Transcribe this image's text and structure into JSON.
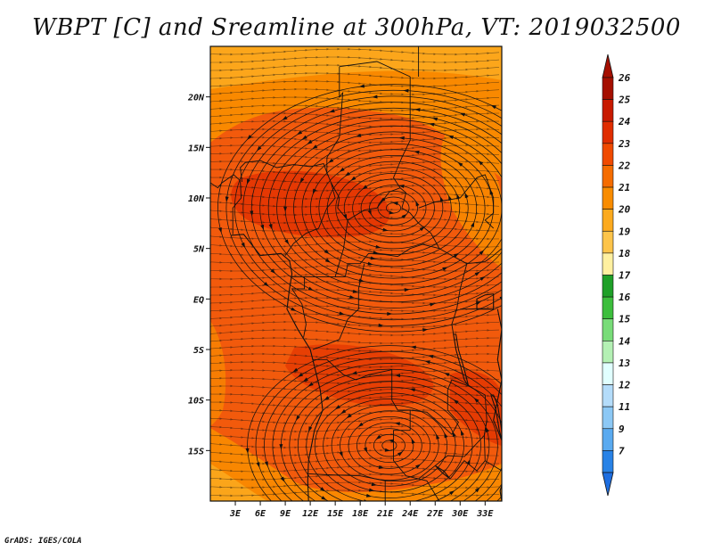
{
  "title": "WBPT [C] and Sreamline at 300hPa, VT: 2019032500",
  "credit": "GrADS: IGES/COLA",
  "map": {
    "lon_range": [
      0,
      35
    ],
    "lat_range": [
      -20,
      25
    ],
    "lat_ticks": [
      {
        "value": 20,
        "label": "20N"
      },
      {
        "value": 15,
        "label": "15N"
      },
      {
        "value": 10,
        "label": "10N"
      },
      {
        "value": 5,
        "label": "5N"
      },
      {
        "value": 0,
        "label": "EQ"
      },
      {
        "value": -5,
        "label": "5S"
      },
      {
        "value": -10,
        "label": "10S"
      },
      {
        "value": -15,
        "label": "15S"
      }
    ],
    "lon_ticks": [
      {
        "value": 3,
        "label": "3E"
      },
      {
        "value": 6,
        "label": "6E"
      },
      {
        "value": 9,
        "label": "9E"
      },
      {
        "value": 12,
        "label": "12E"
      },
      {
        "value": 15,
        "label": "15E"
      },
      {
        "value": 18,
        "label": "18E"
      },
      {
        "value": 21,
        "label": "21E"
      },
      {
        "value": 24,
        "label": "24E"
      },
      {
        "value": 27,
        "label": "27E"
      },
      {
        "value": 30,
        "label": "30E"
      },
      {
        "value": 33,
        "label": "33E"
      }
    ],
    "vortices": [
      {
        "lon": 22,
        "lat": 9,
        "direction": "anticyclonic"
      },
      {
        "lon": 21.5,
        "lat": -14.5,
        "direction": "anticyclonic"
      }
    ]
  },
  "colorbar": {
    "levels": [
      {
        "label": "26",
        "color": "#a50f00"
      },
      {
        "label": "25",
        "color": "#c81a00"
      },
      {
        "label": "24",
        "color": "#e02d00"
      },
      {
        "label": "23",
        "color": "#f04a00"
      },
      {
        "label": "22",
        "color": "#f56c00"
      },
      {
        "label": "21",
        "color": "#f98c00"
      },
      {
        "label": "20",
        "color": "#fcaa1e"
      },
      {
        "label": "19",
        "color": "#fdc44a"
      },
      {
        "label": "18",
        "color": "#fff0a0"
      },
      {
        "label": "17",
        "color": "#1fa028"
      },
      {
        "label": "16",
        "color": "#3cbe3c"
      },
      {
        "label": "15",
        "color": "#78dc78"
      },
      {
        "label": "14",
        "color": "#b4f0b4"
      },
      {
        "label": "13",
        "color": "#e1ffff"
      },
      {
        "label": "12",
        "color": "#b4dcfa"
      },
      {
        "label": "11",
        "color": "#8cc8f5"
      },
      {
        "label": "9",
        "color": "#5aaaf0"
      },
      {
        "label": "7",
        "color": "#2882e6"
      }
    ],
    "bottom_color": "#1e6ee0"
  }
}
